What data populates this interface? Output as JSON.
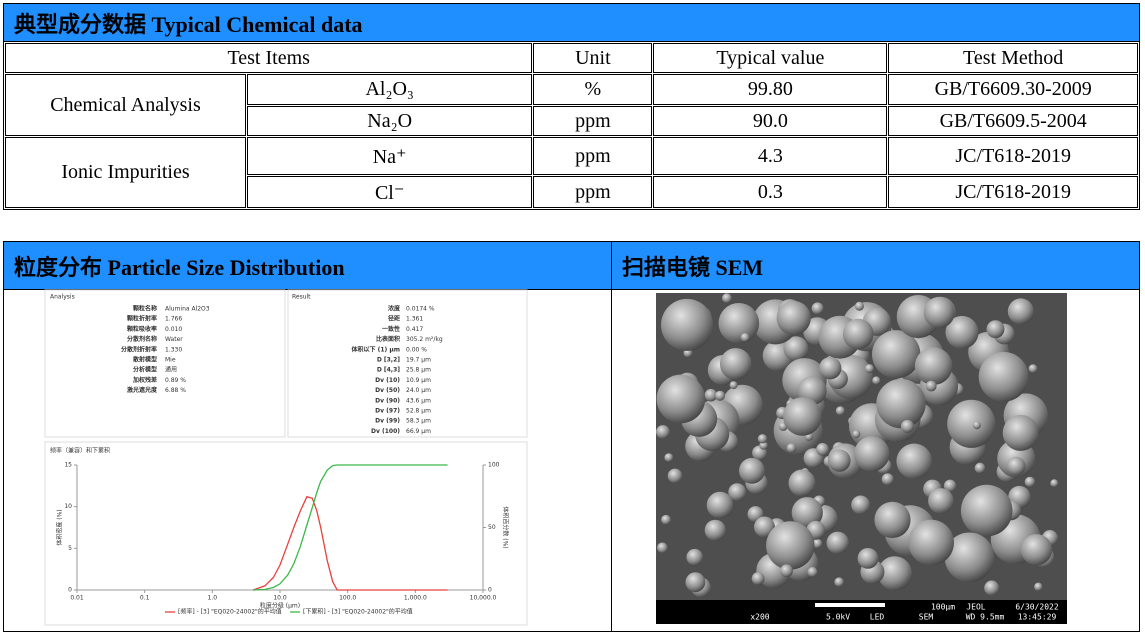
{
  "chem": {
    "title": "典型成分数据 Typical Chemical data",
    "headers": [
      "Test Items",
      "Unit",
      "Typical value",
      "Test Method"
    ],
    "groups": [
      {
        "name": "Chemical Analysis",
        "items": [
          {
            "item": "Al₂O₃",
            "unit": "%",
            "value": "99.80",
            "method": "GB/T6609.30-2009"
          },
          {
            "item": "Na₂O",
            "unit": "ppm",
            "value": "90.0",
            "method": "GB/T6609.5-2004"
          }
        ]
      },
      {
        "name": "Ionic Impurities",
        "items": [
          {
            "item": "Na⁺",
            "unit": "ppm",
            "value": "4.3",
            "method": "JC/T618-2019"
          },
          {
            "item": "Cl⁻",
            "unit": "ppm",
            "value": "0.3",
            "method": "JC/T618-2019"
          }
        ]
      }
    ]
  },
  "psd": {
    "title": "粒度分布 Particle Size Distribution",
    "analysis_title": "Analysis",
    "analysis": [
      [
        "颗粒名称",
        "Alumina Al2O3"
      ],
      [
        "颗粒折射率",
        "1.766"
      ],
      [
        "颗粒吸收率",
        "0.010"
      ],
      [
        "分散剂名称",
        "Water"
      ],
      [
        "分散剂折射率",
        "1.330"
      ],
      [
        "散射模型",
        "Mie"
      ],
      [
        "分析模型",
        "通用"
      ],
      [
        "加权残差",
        "0.89 %"
      ],
      [
        "激光遮光度",
        "6.88 %"
      ]
    ],
    "result_title": "Result",
    "result": [
      [
        "浓度",
        "0.0174 %"
      ],
      [
        "径距",
        "1.361"
      ],
      [
        "一致性",
        "0.417"
      ],
      [
        "比表面积",
        "305.2 m²/kg"
      ],
      [
        "体积以下 (1) μm",
        "0.00 %"
      ],
      [
        "D [3,2]",
        "19.7 μm"
      ],
      [
        "D [4,3]",
        "25.8 μm"
      ],
      [
        "Dv (10)",
        "10.9 μm"
      ],
      [
        "Dv (50)",
        "24.0 μm"
      ],
      [
        "Dv (90)",
        "43.6 μm"
      ],
      [
        "Dv (97)",
        "52.8 μm"
      ],
      [
        "Dv (99)",
        "58.3 μm"
      ],
      [
        "Dv (100)",
        "66.9 μm"
      ]
    ]
  },
  "sem": {
    "title": "扫描电镜 SEM",
    "info": [
      "x200",
      "5.0kV",
      "LED",
      "SEM",
      "100μm",
      "JEOL",
      "6/30/2022",
      "WD 9.5mm",
      "13:45:29"
    ]
  },
  "chart_data": {
    "type": "line",
    "title": "频率（兼容）和下累积",
    "x_label": "粒度分级 (μm)",
    "y_label": "体积密度 (%)",
    "y2_label": "体积百分数 (%)",
    "log_x": true,
    "x": [
      4,
      6,
      8,
      10,
      13,
      16,
      20,
      25,
      30,
      35,
      40,
      50,
      60,
      70,
      1000,
      3000
    ],
    "xlim": [
      0.01,
      10000
    ],
    "xticks": [
      0.01,
      0.1,
      {
        "value": 1,
        "label": "1.0"
      },
      {
        "value": 10,
        "label": "10.0"
      },
      {
        "value": 100,
        "label": "100.0"
      },
      {
        "value": 1000,
        "label": "1,000.0"
      },
      {
        "value": 10000,
        "label": "10,000.0"
      }
    ],
    "ylim": [
      0,
      15
    ],
    "yticks": [
      0,
      5,
      10,
      15
    ],
    "y2lim": [
      0,
      100
    ],
    "y2ticks": [
      0,
      50,
      100
    ],
    "series": [
      {
        "name": "[频率] - [3] \"EQ020-24002\"的平均值",
        "color": "#e8413c",
        "values": [
          0,
          0.5,
          1.5,
          3,
          5.5,
          7.5,
          9.5,
          11.2,
          11,
          9.5,
          7.5,
          3.5,
          1,
          0,
          0,
          0
        ]
      },
      {
        "name": "[下累积] - [3] \"EQ020-24002\"的平均值",
        "color": "#3cb84a",
        "axis": "y2",
        "values": [
          0,
          0.5,
          2,
          5,
          12,
          21,
          35,
          52,
          66,
          78,
          87,
          96,
          99.5,
          100,
          100,
          100
        ]
      }
    ]
  }
}
